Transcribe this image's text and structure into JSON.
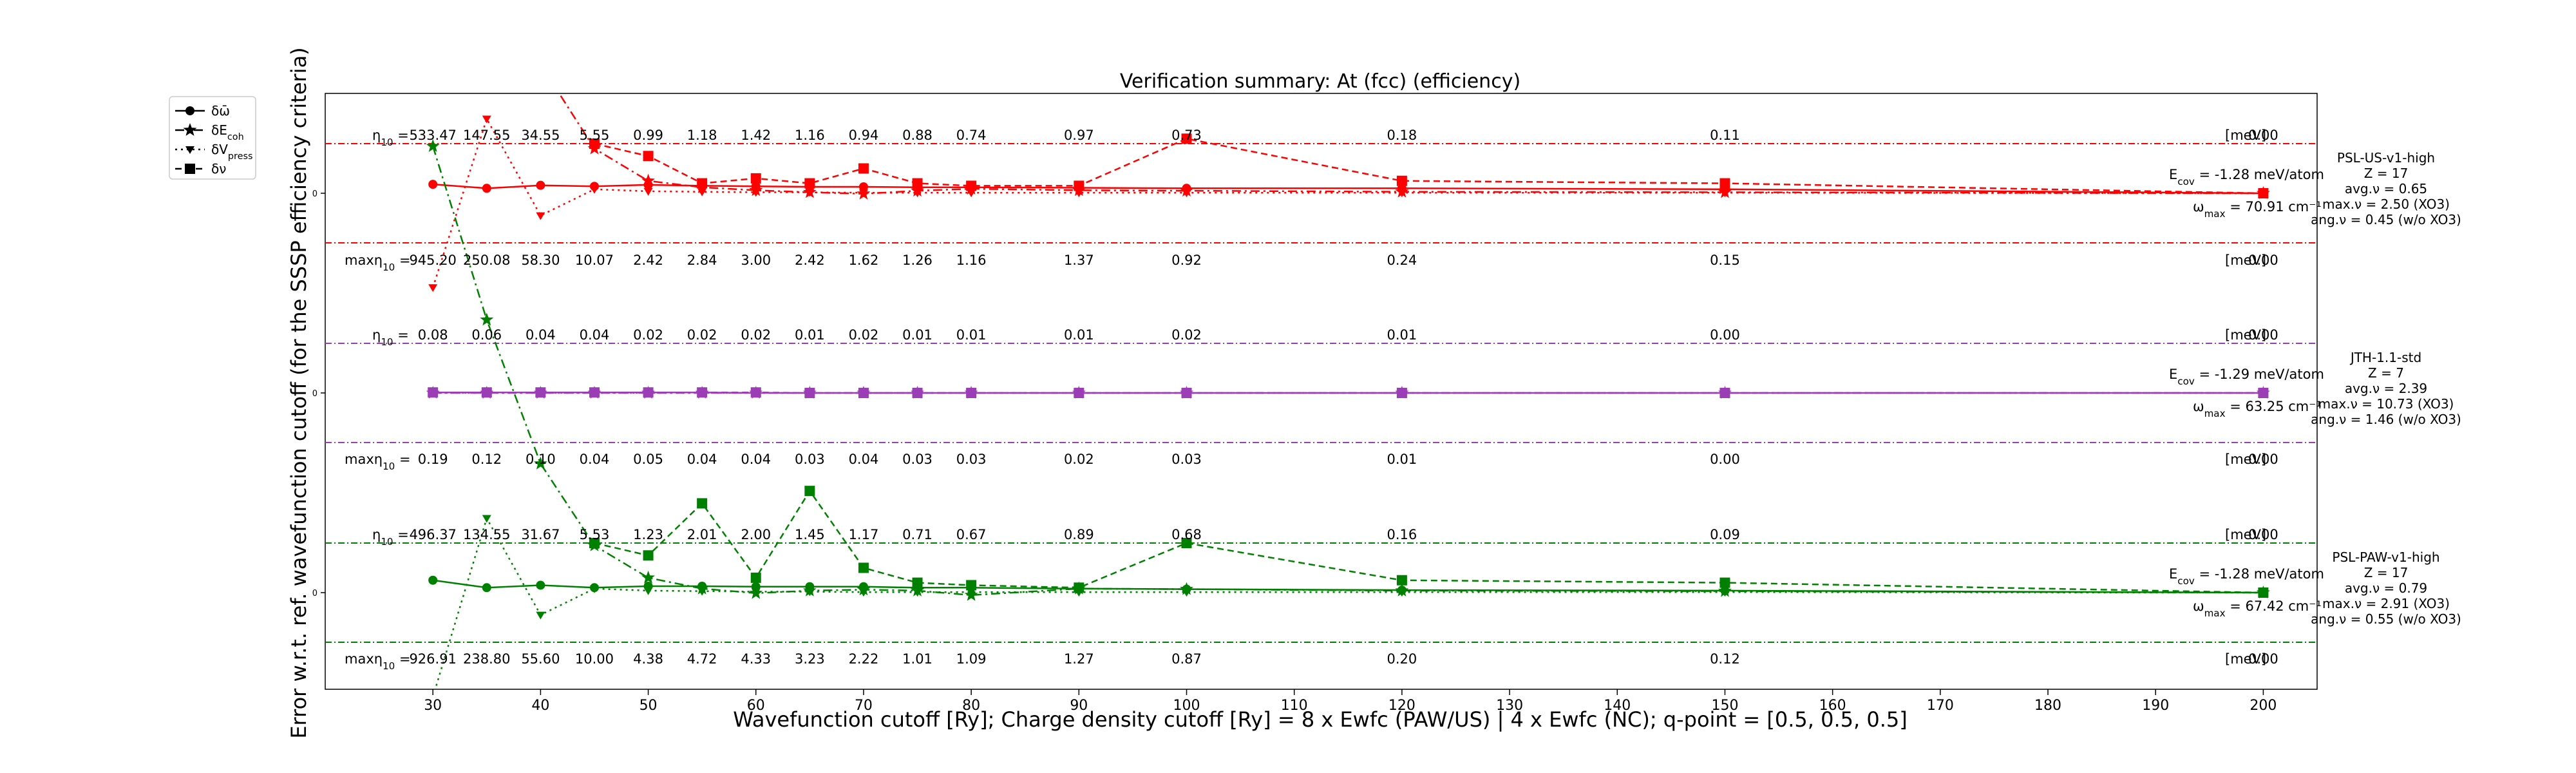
{
  "chart_data": {
    "type": "line",
    "title": "Verification summary: At (fcc) (efficiency)",
    "xlabel": "Wavefunction cutoff [Ry]; Charge density cutoff [Ry] = 8 x Ewfc (PAW/US) | 4 x Ewfc (NC); q-point = [0.5, 0.5, 0.5]",
    "ylabel": "Error w.r.t. ref. wavefunction cutoff (for the SSSP efficiency criteria)",
    "xlim": [
      20,
      205
    ],
    "x_ticks": [
      "30",
      "40",
      "50",
      "60",
      "70",
      "80",
      "90",
      "100",
      "110",
      "120",
      "130",
      "140",
      "150",
      "160",
      "170",
      "180",
      "190",
      "200"
    ],
    "x": [
      30,
      35,
      40,
      45,
      50,
      55,
      60,
      65,
      70,
      75,
      80,
      90,
      100,
      120,
      150,
      200
    ],
    "grid": false,
    "legend_position": "outside-top-left",
    "legend": [
      {
        "label": "δω̄",
        "style": "solid",
        "marker": "circle"
      },
      {
        "label": "δE_coh",
        "style": "dashdot",
        "marker": "star"
      },
      {
        "label": "δV_press",
        "style": "dotted",
        "marker": "triangle"
      },
      {
        "label": "δν",
        "style": "dashed",
        "marker": "square"
      }
    ],
    "unit_label": "[meV]",
    "panels": [
      {
        "name": "PSL-US-v1-high",
        "color": "#ff0000",
        "y_tick": "0",
        "eta_label": "η",
        "eta_values": [
          "533.47",
          "147.55",
          "34.55",
          "5.55",
          "0.99",
          "1.18",
          "1.42",
          "1.16",
          "0.94",
          "0.88",
          "0.74",
          "0.97",
          "0.73",
          "0.18",
          "0.11",
          "0.00"
        ],
        "max_label": "maxη",
        "max_values": [
          "945.20",
          "250.08",
          "58.30",
          "10.07",
          "2.42",
          "2.84",
          "3.00",
          "2.42",
          "1.62",
          "1.26",
          "1.16",
          "1.37",
          "0.92",
          "0.24",
          "0.15",
          "0.00"
        ],
        "ecov": "E_cov = -1.28 meV/atom",
        "omega_max": "ω_max = 70.91 cm⁻¹",
        "info": [
          "PSL-US-v1-high",
          "Z = 17",
          "avg.ν = 0.65",
          "max.ν = 2.50 (XO3)",
          "ang.ν = 0.45 (w/o XO3)"
        ],
        "series": {
          "omega": [
            0.18,
            0.1,
            0.16,
            0.14,
            0.17,
            0.15,
            0.14,
            0.13,
            0.13,
            0.12,
            0.12,
            0.11,
            0.1,
            0.1,
            0.08,
            0
          ],
          "ecoh": [
            9.8,
            5.5,
            2.6,
            0.9,
            0.25,
            0.12,
            0.06,
            0.02,
            -0.01,
            0.05,
            0.09,
            0.06,
            0.05,
            0.03,
            0.02,
            0
          ],
          "vpress": [
            -1.9,
            1.5,
            -0.45,
            0.08,
            0.04,
            0.03,
            0.02,
            0.02,
            0.01,
            0.01,
            0.01,
            0.01,
            0.01,
            0.01,
            0.01,
            0
          ],
          "nu": [
            null,
            null,
            null,
            1.0,
            0.75,
            0.2,
            0.3,
            0.2,
            0.5,
            0.2,
            0.15,
            0.15,
            1.1,
            0.25,
            0.2,
            0
          ]
        }
      },
      {
        "name": "JTH-1.1-std",
        "color": "#9b3db5",
        "y_tick": "0",
        "eta_label": "η",
        "eta_values": [
          "0.08",
          "0.06",
          "0.04",
          "0.04",
          "0.02",
          "0.02",
          "0.02",
          "0.01",
          "0.02",
          "0.01",
          "0.01",
          "0.01",
          "0.02",
          "0.01",
          "0.00",
          "0.00"
        ],
        "max_label": "maxη",
        "max_values": [
          "0.19",
          "0.12",
          "0.10",
          "0.04",
          "0.05",
          "0.04",
          "0.04",
          "0.03",
          "0.04",
          "0.03",
          "0.03",
          "0.02",
          "0.03",
          "0.01",
          "0.00",
          "0.00"
        ],
        "ecov": "E_cov = -1.29 meV/atom",
        "omega_max": "ω_max = 63.25 cm⁻¹",
        "info": [
          "JTH-1.1-std",
          "Z = 7",
          "avg.ν = 2.39",
          "max.ν = 10.73 (XO3)",
          "ang.ν = 1.46 (w/o XO3)"
        ],
        "series": {
          "omega": [
            0.01,
            0.01,
            0.01,
            0.01,
            0.01,
            0.01,
            0.0,
            0.0,
            0.0,
            0.0,
            0.0,
            0.0,
            0.0,
            0.0,
            0.0,
            0
          ],
          "ecoh": [
            0,
            0,
            0,
            0,
            0,
            0,
            0,
            0,
            0,
            0,
            0,
            0,
            0,
            0,
            0,
            0
          ],
          "vpress": [
            0,
            0,
            0,
            0,
            0,
            0,
            0,
            0,
            0,
            0,
            0,
            0,
            0,
            0,
            0,
            0
          ],
          "nu": [
            0.01,
            0.01,
            0.01,
            0.01,
            0.01,
            0.01,
            0.01,
            0.0,
            0.0,
            0.0,
            0.0,
            0.0,
            0.0,
            0.0,
            0.0,
            0
          ]
        }
      },
      {
        "name": "PSL-PAW-v1-high",
        "color": "#008000",
        "y_tick": "0",
        "eta_label": "η",
        "eta_values": [
          "496.37",
          "134.55",
          "31.67",
          "5.53",
          "1.23",
          "2.01",
          "2.00",
          "1.45",
          "1.17",
          "0.71",
          "0.67",
          "0.89",
          "0.68",
          "0.16",
          "0.09",
          "0.00"
        ],
        "max_label": "maxη",
        "max_values": [
          "926.91",
          "238.80",
          "55.60",
          "10.00",
          "4.38",
          "4.72",
          "4.33",
          "3.23",
          "2.22",
          "1.01",
          "1.09",
          "1.27",
          "0.87",
          "0.20",
          "0.12",
          "0.00"
        ],
        "ecov": "E_cov = -1.28 meV/atom",
        "omega_max": "ω_max = 67.42 cm⁻¹",
        "info": [
          "PSL-PAW-v1-high",
          "Z = 17",
          "avg.ν = 0.79",
          "max.ν = 2.91 (XO3)",
          "ang.ν = 0.55 (w/o XO3)"
        ],
        "series": {
          "omega": [
            0.25,
            0.1,
            0.15,
            0.1,
            0.13,
            0.13,
            0.12,
            0.12,
            0.12,
            0.1,
            0.1,
            0.08,
            0.07,
            0.05,
            0.04,
            0
          ],
          "ecoh": [
            9.0,
            5.5,
            2.6,
            0.95,
            0.3,
            0.08,
            -0.01,
            0.04,
            0.06,
            0.04,
            -0.05,
            0.08,
            0.07,
            0.04,
            0.03,
            0
          ],
          "vpress": [
            -2.1,
            1.5,
            -0.45,
            0.08,
            0.04,
            0.03,
            0.02,
            0.02,
            0.01,
            0.01,
            0.01,
            0.01,
            0.01,
            0.01,
            0.01,
            0
          ],
          "nu": [
            null,
            null,
            null,
            1.0,
            0.75,
            1.8,
            0.3,
            2.05,
            0.5,
            0.2,
            0.15,
            0.1,
            1.0,
            0.25,
            0.2,
            0
          ]
        }
      }
    ]
  }
}
